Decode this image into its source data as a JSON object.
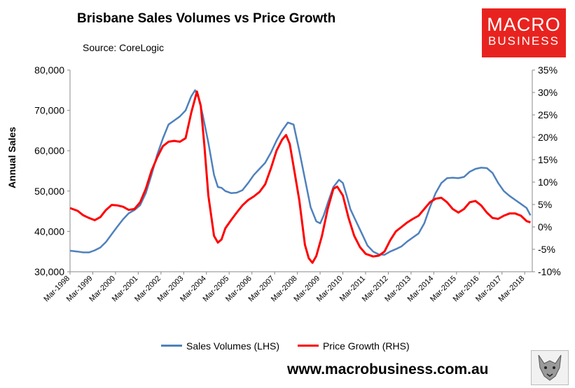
{
  "header": {
    "title": "Brisbane Sales Volumes vs Price Growth",
    "source": "Source: CoreLogic"
  },
  "logo": {
    "line1": "MACRO",
    "line2": "BUSINESS",
    "color": "#e8231f"
  },
  "footer": {
    "website": "www.macrobusiness.com.au",
    "emblem_icon": "wolf-head-icon"
  },
  "chart_data": {
    "type": "line",
    "title": "Brisbane Sales Volumes vs Price Growth",
    "ylabel": "Annual Sales",
    "ylim": [
      30000,
      80000
    ],
    "y2lim": [
      -10,
      35
    ],
    "xlim": [
      1998.167,
      2018.5
    ],
    "y_ticks": [
      "30,000",
      "40,000",
      "50,000",
      "60,000",
      "70,000",
      "80,000"
    ],
    "y2_ticks": [
      "-10%",
      "-5%",
      "0%",
      "5%",
      "10%",
      "15%",
      "20%",
      "25%",
      "30%",
      "35%"
    ],
    "x_ticks": [
      "Mar-1998",
      "Mar-1999",
      "Mar-2000",
      "Mar-2001",
      "Mar-2002",
      "Mar-2003",
      "Mar-2004",
      "Mar-2005",
      "Mar-2006",
      "Mar-2007",
      "Mar-2008",
      "Mar-2009",
      "Mar-2010",
      "Mar-2011",
      "Mar-2012",
      "Mar-2013",
      "Mar-2014",
      "Mar-2015",
      "Mar-2016",
      "Mar-2017",
      "Mar-2018"
    ],
    "grid": false,
    "legend_position": "bottom",
    "series": [
      {
        "name": "Sales Volumes (LHS)",
        "axis": "left",
        "color": "#4f81bd",
        "points": [
          [
            1998.17,
            35200
          ],
          [
            1998.5,
            35000
          ],
          [
            1998.75,
            34800
          ],
          [
            1999.0,
            34800
          ],
          [
            1999.25,
            35300
          ],
          [
            1999.5,
            36000
          ],
          [
            1999.75,
            37400
          ],
          [
            2000.0,
            39300
          ],
          [
            2000.25,
            41200
          ],
          [
            2000.5,
            43000
          ],
          [
            2000.75,
            44500
          ],
          [
            2001.0,
            45300
          ],
          [
            2001.25,
            46500
          ],
          [
            2001.5,
            49500
          ],
          [
            2001.75,
            54000
          ],
          [
            2002.0,
            59000
          ],
          [
            2002.25,
            63000
          ],
          [
            2002.5,
            66500
          ],
          [
            2002.75,
            67500
          ],
          [
            2003.0,
            68500
          ],
          [
            2003.25,
            70000
          ],
          [
            2003.5,
            73500
          ],
          [
            2003.67,
            75000
          ],
          [
            2003.83,
            73000
          ],
          [
            2004.0,
            69000
          ],
          [
            2004.25,
            62000
          ],
          [
            2004.5,
            54000
          ],
          [
            2004.67,
            51000
          ],
          [
            2004.83,
            50800
          ],
          [
            2005.0,
            50000
          ],
          [
            2005.25,
            49500
          ],
          [
            2005.5,
            49600
          ],
          [
            2005.75,
            50200
          ],
          [
            2006.0,
            52000
          ],
          [
            2006.25,
            54000
          ],
          [
            2006.5,
            55500
          ],
          [
            2006.75,
            57000
          ],
          [
            2007.0,
            59500
          ],
          [
            2007.25,
            62500
          ],
          [
            2007.5,
            65000
          ],
          [
            2007.75,
            67000
          ],
          [
            2008.0,
            66500
          ],
          [
            2008.25,
            60000
          ],
          [
            2008.5,
            53000
          ],
          [
            2008.75,
            46000
          ],
          [
            2009.0,
            42500
          ],
          [
            2009.17,
            42000
          ],
          [
            2009.33,
            44000
          ],
          [
            2009.5,
            47000
          ],
          [
            2009.75,
            51000
          ],
          [
            2010.0,
            52800
          ],
          [
            2010.17,
            52000
          ],
          [
            2010.33,
            49000
          ],
          [
            2010.5,
            45500
          ],
          [
            2010.75,
            42500
          ],
          [
            2011.0,
            39500
          ],
          [
            2011.25,
            36500
          ],
          [
            2011.5,
            35000
          ],
          [
            2011.75,
            34300
          ],
          [
            2012.0,
            34200
          ],
          [
            2012.25,
            35000
          ],
          [
            2012.5,
            35600
          ],
          [
            2012.75,
            36300
          ],
          [
            2013.0,
            37500
          ],
          [
            2013.25,
            38500
          ],
          [
            2013.5,
            39500
          ],
          [
            2013.75,
            42000
          ],
          [
            2014.0,
            46000
          ],
          [
            2014.25,
            49500
          ],
          [
            2014.5,
            52000
          ],
          [
            2014.75,
            53200
          ],
          [
            2015.0,
            53300
          ],
          [
            2015.25,
            53200
          ],
          [
            2015.5,
            53500
          ],
          [
            2015.75,
            54800
          ],
          [
            2016.0,
            55500
          ],
          [
            2016.25,
            55800
          ],
          [
            2016.5,
            55700
          ],
          [
            2016.75,
            54500
          ],
          [
            2017.0,
            52000
          ],
          [
            2017.25,
            50000
          ],
          [
            2017.5,
            48800
          ],
          [
            2017.75,
            47800
          ],
          [
            2018.0,
            46800
          ],
          [
            2018.25,
            45800
          ],
          [
            2018.42,
            44000
          ]
        ]
      },
      {
        "name": "Price Growth (RHS)",
        "axis": "right",
        "color": "#ff0000",
        "points": [
          [
            1998.17,
            4.2
          ],
          [
            1998.5,
            3.6
          ],
          [
            1998.75,
            2.6
          ],
          [
            1999.0,
            2.0
          ],
          [
            1999.25,
            1.5
          ],
          [
            1999.5,
            2.2
          ],
          [
            1999.75,
            3.8
          ],
          [
            2000.0,
            4.9
          ],
          [
            2000.25,
            4.8
          ],
          [
            2000.5,
            4.5
          ],
          [
            2000.75,
            3.8
          ],
          [
            2001.0,
            4.0
          ],
          [
            2001.25,
            5.5
          ],
          [
            2001.5,
            8.5
          ],
          [
            2001.75,
            12.5
          ],
          [
            2002.0,
            15.5
          ],
          [
            2002.25,
            18.0
          ],
          [
            2002.5,
            19.0
          ],
          [
            2002.75,
            19.2
          ],
          [
            2003.0,
            19.0
          ],
          [
            2003.25,
            19.8
          ],
          [
            2003.5,
            25.5
          ],
          [
            2003.75,
            30.2
          ],
          [
            2003.92,
            27.0
          ],
          [
            2004.08,
            18.0
          ],
          [
            2004.25,
            7.0
          ],
          [
            2004.5,
            -2.0
          ],
          [
            2004.67,
            -3.5
          ],
          [
            2004.83,
            -2.8
          ],
          [
            2005.0,
            -0.3
          ],
          [
            2005.25,
            1.5
          ],
          [
            2005.5,
            3.2
          ],
          [
            2005.75,
            4.8
          ],
          [
            2006.0,
            6.0
          ],
          [
            2006.25,
            6.8
          ],
          [
            2006.5,
            7.8
          ],
          [
            2006.75,
            9.5
          ],
          [
            2007.0,
            13.0
          ],
          [
            2007.25,
            17.0
          ],
          [
            2007.5,
            19.5
          ],
          [
            2007.67,
            20.5
          ],
          [
            2007.83,
            18.5
          ],
          [
            2008.0,
            13.5
          ],
          [
            2008.25,
            6.0
          ],
          [
            2008.5,
            -4.0
          ],
          [
            2008.67,
            -7.0
          ],
          [
            2008.83,
            -8.0
          ],
          [
            2009.0,
            -6.5
          ],
          [
            2009.25,
            -2.0
          ],
          [
            2009.5,
            4.0
          ],
          [
            2009.75,
            8.5
          ],
          [
            2009.92,
            9.0
          ],
          [
            2010.17,
            7.0
          ],
          [
            2010.42,
            2.0
          ],
          [
            2010.67,
            -2.0
          ],
          [
            2010.92,
            -4.5
          ],
          [
            2011.17,
            -6.0
          ],
          [
            2011.5,
            -6.6
          ],
          [
            2011.75,
            -6.4
          ],
          [
            2012.0,
            -5.5
          ],
          [
            2012.25,
            -3.0
          ],
          [
            2012.5,
            -1.0
          ],
          [
            2012.75,
            0.0
          ],
          [
            2013.0,
            1.0
          ],
          [
            2013.25,
            1.8
          ],
          [
            2013.5,
            2.5
          ],
          [
            2013.75,
            4.0
          ],
          [
            2014.0,
            5.5
          ],
          [
            2014.25,
            6.3
          ],
          [
            2014.5,
            6.5
          ],
          [
            2014.75,
            5.5
          ],
          [
            2015.0,
            4.0
          ],
          [
            2015.25,
            3.2
          ],
          [
            2015.5,
            4.0
          ],
          [
            2015.75,
            5.5
          ],
          [
            2016.0,
            5.8
          ],
          [
            2016.25,
            4.8
          ],
          [
            2016.5,
            3.2
          ],
          [
            2016.75,
            2.0
          ],
          [
            2017.0,
            1.8
          ],
          [
            2017.25,
            2.5
          ],
          [
            2017.5,
            3.0
          ],
          [
            2017.75,
            3.0
          ],
          [
            2018.0,
            2.5
          ],
          [
            2018.25,
            1.3
          ],
          [
            2018.42,
            1.0
          ]
        ]
      }
    ]
  }
}
